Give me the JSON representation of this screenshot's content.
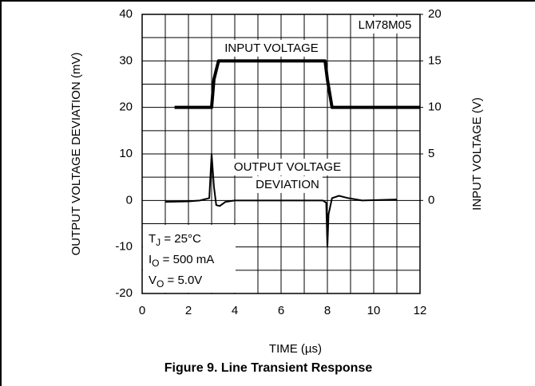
{
  "chart_data": {
    "type": "line",
    "caption": "Figure 9. Line Transient Response",
    "xlabel": "TIME (µs)",
    "ylabel": "OUTPUT VOLTAGE DEVIATION (mV)",
    "y2label": "INPUT VOLTAGE (V)",
    "xlim": [
      0,
      12
    ],
    "xticks": [
      0,
      2,
      4,
      6,
      8,
      10,
      12
    ],
    "ylim": [
      -20,
      40
    ],
    "yticks": [
      -20,
      -10,
      0,
      10,
      20,
      30,
      40
    ],
    "y2lim": [
      -10,
      20
    ],
    "y2ticks": [
      0,
      5,
      10,
      15,
      20
    ],
    "grid": true,
    "xgrid": [
      1,
      3,
      5,
      7,
      9,
      11
    ],
    "ygrid": [
      -15,
      -5,
      5,
      15,
      25,
      35
    ],
    "series": [
      {
        "name": "INPUT VOLTAGE",
        "color": "#000000",
        "axis": "y2",
        "x": [
          1.4,
          3.0,
          3.1,
          3.3,
          7.9,
          8.0,
          8.2,
          12
        ],
        "values": [
          10,
          10,
          13,
          15,
          15,
          13,
          10,
          10
        ]
      },
      {
        "name": "OUTPUT VOLTAGE DEVIATION",
        "color": "#000000",
        "axis": "y",
        "x": [
          1,
          2,
          2.5,
          2.9,
          3.0,
          3.1,
          3.2,
          3.35,
          3.6,
          4,
          7,
          7.8,
          7.95,
          8.0,
          8.05,
          8.2,
          8.5,
          8.9,
          9.5,
          11
        ],
        "values": [
          -0.3,
          -0.2,
          0,
          0.5,
          10,
          3,
          -1,
          -1.2,
          -0.3,
          0,
          0,
          0,
          -0.5,
          -10,
          -3,
          0.5,
          1,
          0.5,
          0,
          0.2
        ]
      }
    ],
    "annotations": [
      "LM78M05",
      "INPUT VOLTAGE",
      "OUTPUT VOLTAGE",
      "DEVIATION"
    ],
    "conditions": [
      {
        "main": "T",
        "sub": "J",
        "rest": " = 25°C"
      },
      {
        "main": "I",
        "sub": "O",
        "rest": " = 500 mA"
      },
      {
        "main": "V",
        "sub": "O",
        "rest": " = 5.0V"
      }
    ]
  }
}
